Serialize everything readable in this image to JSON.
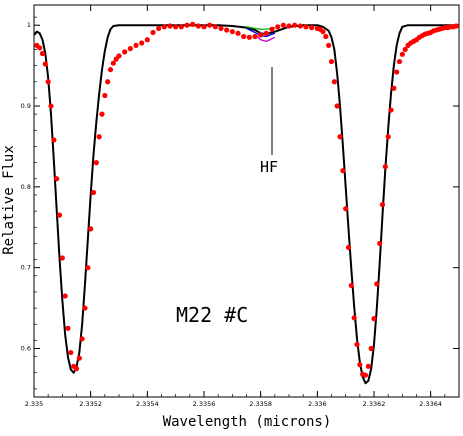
{
  "chart_data": {
    "type": "line",
    "title": "",
    "xlabel": "Wavelength (microns)",
    "ylabel": "Relative Flux",
    "xlim": [
      2.335,
      2.3365
    ],
    "ylim": [
      0.54,
      1.025
    ],
    "x_ticks": [
      2.335,
      2.3352,
      2.3354,
      2.3356,
      2.3358,
      2.336,
      2.3362,
      2.3364
    ],
    "x_tick_labels": [
      "2.335",
      "2.3352",
      "2.3354",
      "2.3356",
      "2.3358",
      "2.336",
      "2.3362",
      "2.3364"
    ],
    "y_ticks": [
      0.6,
      0.7,
      0.8,
      0.9,
      1.0
    ],
    "y_tick_labels": [
      "0.6",
      "0.7",
      "0.8",
      "0.9",
      "1"
    ],
    "annotations": [
      {
        "text": "HF",
        "x": 2.33581,
        "y": 0.82
      },
      {
        "text": "M22 #C",
        "x": 2.33565,
        "y": 0.62
      }
    ],
    "series": [
      {
        "kind": "points",
        "color": "#ff0000",
        "x": [
          2.33501,
          2.33502,
          2.33503,
          2.33504,
          2.33505,
          2.33506,
          2.33507,
          2.33508,
          2.33509,
          2.3351,
          2.33511,
          2.33512,
          2.33513,
          2.33514,
          2.33515,
          2.33516,
          2.33517,
          2.33518,
          2.33519,
          2.3352,
          2.33521,
          2.33522,
          2.33523,
          2.33524,
          2.33525,
          2.33526,
          2.33527,
          2.33528,
          2.33529,
          2.3353,
          2.33532,
          2.33534,
          2.33536,
          2.33538,
          2.3354,
          2.33542,
          2.33544,
          2.33546,
          2.33548,
          2.3355,
          2.33552,
          2.33554,
          2.33556,
          2.33558,
          2.3356,
          2.33562,
          2.33564,
          2.33566,
          2.33568,
          2.3357,
          2.33572,
          2.33574,
          2.33576,
          2.33578,
          2.3358,
          2.33582,
          2.33584,
          2.33586,
          2.33588,
          2.3359,
          2.33592,
          2.33594,
          2.33596,
          2.33598,
          2.336,
          2.33601,
          2.33602,
          2.33603,
          2.33604,
          2.33605,
          2.33606,
          2.33607,
          2.33608,
          2.33609,
          2.3361,
          2.33611,
          2.33612,
          2.33613,
          2.33614,
          2.33615,
          2.33616,
          2.33617,
          2.33618,
          2.33619,
          2.3362,
          2.33621,
          2.33622,
          2.33623,
          2.33624,
          2.33625,
          2.33626,
          2.33627,
          2.33628,
          2.33629,
          2.3363,
          2.33631,
          2.33632,
          2.33633,
          2.33634,
          2.33635,
          2.33636,
          2.33637,
          2.33638,
          2.33639,
          2.3364,
          2.33641,
          2.33642,
          2.33643,
          2.33644,
          2.33645,
          2.33646,
          2.33647,
          2.33648,
          2.33649
        ],
        "y": [
          0.975,
          0.972,
          0.965,
          0.952,
          0.93,
          0.9,
          0.858,
          0.81,
          0.765,
          0.712,
          0.665,
          0.625,
          0.595,
          0.578,
          0.575,
          0.588,
          0.612,
          0.65,
          0.7,
          0.748,
          0.793,
          0.83,
          0.862,
          0.89,
          0.913,
          0.93,
          0.945,
          0.953,
          0.958,
          0.962,
          0.967,
          0.971,
          0.975,
          0.978,
          0.982,
          0.991,
          0.996,
          0.998,
          0.999,
          0.998,
          0.998,
          1.0,
          1.001,
          0.999,
          0.998,
          1.0,
          0.998,
          0.996,
          0.994,
          0.992,
          0.99,
          0.986,
          0.985,
          0.986,
          0.988,
          0.99,
          0.995,
          0.998,
          1.0,
          0.999,
          1.0,
          0.999,
          0.998,
          0.997,
          0.996,
          0.995,
          0.992,
          0.986,
          0.975,
          0.955,
          0.93,
          0.9,
          0.862,
          0.82,
          0.773,
          0.725,
          0.678,
          0.638,
          0.605,
          0.58,
          0.568,
          0.567,
          0.578,
          0.6,
          0.637,
          0.68,
          0.73,
          0.778,
          0.825,
          0.862,
          0.895,
          0.922,
          0.942,
          0.955,
          0.964,
          0.97,
          0.975,
          0.978,
          0.98,
          0.982,
          0.985,
          0.987,
          0.989,
          0.99,
          0.991,
          0.993,
          0.994,
          0.995,
          0.996,
          0.997,
          0.997,
          0.998,
          0.998,
          0.999
        ]
      },
      {
        "kind": "model",
        "color": "#000000",
        "x": [
          2.335,
          2.33501,
          2.33502,
          2.33503,
          2.33504,
          2.33505,
          2.33506,
          2.33507,
          2.33508,
          2.33509,
          2.3351,
          2.33511,
          2.33512,
          2.33513,
          2.33514,
          2.33515,
          2.33516,
          2.33517,
          2.33518,
          2.33519,
          2.3352,
          2.33521,
          2.33522,
          2.33523,
          2.33524,
          2.33525,
          2.33526,
          2.33527,
          2.33528,
          2.3353,
          2.33535,
          2.3354,
          2.33545,
          2.3355,
          2.33555,
          2.3356,
          2.33565,
          2.3357,
          2.33575,
          2.33578,
          2.3358,
          2.33582,
          2.33585,
          2.3359,
          2.33595,
          2.336,
          2.33602,
          2.33604,
          2.33605,
          2.33606,
          2.33607,
          2.33608,
          2.33609,
          2.3361,
          2.33611,
          2.33612,
          2.33613,
          2.33614,
          2.33615,
          2.33616,
          2.33617,
          2.33618,
          2.33619,
          2.3362,
          2.33621,
          2.33622,
          2.33623,
          2.33624,
          2.33625,
          2.33626,
          2.33627,
          2.33628,
          2.33629,
          2.3363,
          2.33632,
          2.33635,
          2.3364,
          2.33645,
          2.3365
        ],
        "y": [
          0.988,
          0.992,
          0.99,
          0.982,
          0.965,
          0.935,
          0.89,
          0.833,
          0.772,
          0.712,
          0.66,
          0.617,
          0.589,
          0.574,
          0.57,
          0.577,
          0.595,
          0.63,
          0.68,
          0.735,
          0.79,
          0.84,
          0.88,
          0.915,
          0.945,
          0.968,
          0.985,
          0.995,
          0.999,
          1.0,
          1.0,
          1.0,
          1.0,
          1.0,
          1.0,
          1.0,
          1.0,
          0.999,
          0.997,
          0.994,
          0.99,
          0.989,
          0.992,
          0.998,
          1.0,
          1.0,
          0.998,
          0.993,
          0.985,
          0.97,
          0.94,
          0.9,
          0.852,
          0.8,
          0.748,
          0.698,
          0.652,
          0.612,
          0.583,
          0.565,
          0.557,
          0.56,
          0.575,
          0.605,
          0.65,
          0.705,
          0.765,
          0.822,
          0.872,
          0.915,
          0.95,
          0.975,
          0.99,
          0.998,
          1.0,
          1.0,
          1.0,
          1.0,
          1.0
        ]
      },
      {
        "kind": "model",
        "color": "#00b000",
        "x": [
          2.33575,
          2.33578,
          2.3358,
          2.33582,
          2.33585
        ],
        "y": [
          0.998,
          0.996,
          0.995,
          0.995,
          0.997
        ]
      },
      {
        "kind": "model",
        "color": "#0000ff",
        "x": [
          2.33575,
          2.33578,
          2.3358,
          2.33582,
          2.33585
        ],
        "y": [
          0.996,
          0.991,
          0.987,
          0.986,
          0.99
        ]
      },
      {
        "kind": "model",
        "color": "#c000c0",
        "x": [
          2.33578,
          2.3358,
          2.33582,
          2.33585
        ],
        "y": [
          0.988,
          0.982,
          0.98,
          0.985
        ]
      }
    ]
  }
}
